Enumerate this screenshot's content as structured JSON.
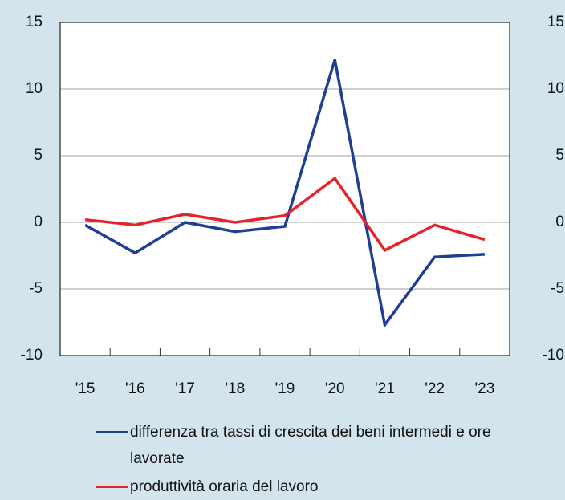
{
  "chart_data": {
    "type": "line",
    "categories": [
      "'15",
      "'16",
      "'17",
      "'18",
      "'19",
      "'20",
      "'21",
      "'22",
      "'23"
    ],
    "series": [
      {
        "name": "differenza tra tassi di crescita dei beni intermedi e ore lavorate",
        "color": "#1f3f95",
        "values": [
          -0.2,
          -2.3,
          0.0,
          -0.7,
          -0.3,
          12.2,
          -7.7,
          -2.6,
          -2.4
        ]
      },
      {
        "name": "produttività oraria del lavoro",
        "color": "#e3242b",
        "values": [
          0.2,
          -0.2,
          0.6,
          0.0,
          0.5,
          3.3,
          -2.1,
          -0.2,
          -1.3
        ]
      }
    ],
    "ylim": [
      -10,
      15
    ],
    "yticks": [
      -10,
      -5,
      0,
      5,
      10,
      15
    ],
    "y2lim": [
      -10,
      15
    ],
    "y2ticks": [
      -10,
      -5,
      0,
      5,
      10,
      15
    ],
    "grid": true
  }
}
